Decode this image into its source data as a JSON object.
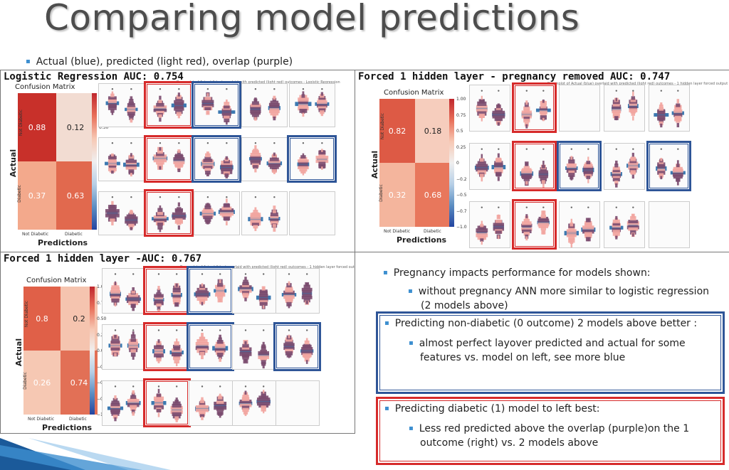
{
  "slide": {
    "title": "Comparing model predictions",
    "subtitle": "Actual (blue), predicted (light red), overlap (purple)"
  },
  "panels": [
    {
      "title": "Logistic Regression AUC: 0.754",
      "plot_header": "Boxenplot of Actual (blue) overlaid with predicted (light red) outcomes - Logistic Regression",
      "cm": {
        "title": "Confusion Matrix",
        "values": [
          "0.88",
          "0.12",
          "0.37",
          "0.63"
        ],
        "row_labels": [
          "Not Diabetic",
          "Diabetic"
        ],
        "col_labels": [
          "Not Diabetic",
          "Diabetic"
        ],
        "xlabel": "Predictions",
        "ylabel": "Actual",
        "colorbar": [
          "1.00",
          "0.75",
          "0.50",
          "0.25",
          "0.00",
          "−0.25",
          "−0.50",
          "−0.75",
          "−1.00"
        ],
        "colors": [
          "#c8302a",
          "#f2dcd2",
          "#f3a98c",
          "#e1694e"
        ]
      }
    },
    {
      "title": "Forced 1 hidden layer - pregnancy removed AUC: 0.747",
      "plot_header": "Boxenplot of Actual (blue) overlaid with predicted (light red) outcomes - 1 hidden layer forced output",
      "cm": {
        "title": "Confusion Matrix",
        "values": [
          "0.82",
          "0.18",
          "0.32",
          "0.68"
        ],
        "row_labels": [
          "Not Diabetic",
          "Diabetic"
        ],
        "col_labels": [
          "Not Diabetic",
          "Diabetic"
        ],
        "xlabel": "Predictions",
        "ylabel": "Actual",
        "colorbar": [
          "1.00",
          "0.75",
          "0.5",
          "0.25",
          "0",
          "−0.2",
          "−0.5",
          "−0.7",
          "−1.0"
        ],
        "colors": [
          "#dd5a45",
          "#f6cdbd",
          "#f4b59d",
          "#e8775c"
        ]
      }
    },
    {
      "title": "Forced 1 hidden layer -AUC: 0.767",
      "plot_header": "Boxenplot of Actual (blue) overlaid with predicted (light red) outcomes - 1 hidden layer forced output",
      "cm": {
        "title": "Confusion Matrix",
        "values": [
          "0.8",
          "0.2",
          "0.26",
          "0.74"
        ],
        "row_labels": [
          "Not Diabetic",
          "Diabetic"
        ],
        "col_labels": [
          "Not Diabetic",
          "Diabetic"
        ],
        "xlabel": "Predictions",
        "ylabel": "Actual",
        "colorbar": [
          "1.00",
          "0.75",
          "0.50",
          "0.25",
          "0.00",
          "−0.25",
          "−0.50",
          "−0.75",
          "−1.00"
        ],
        "colors": [
          "#e06048",
          "#f5c4af",
          "#f6c8b3",
          "#e27056"
        ]
      }
    }
  ],
  "notes": {
    "n1": "Pregnancy impacts performance for models shown:",
    "n1_sub": "without pregnancy ANN more similar to logistic regression (2 models above)",
    "n2": "Predicting non-diabetic (0 outcome) 2 models above better :",
    "n2_sub": "almost perfect layover predicted and actual for some features vs. model on left, see more blue",
    "n3": "Predicting diabetic (1) model to left best:",
    "n3_sub": "Less red predicted above the overlap (purple)on the 1 outcome (right) vs. 2 models above"
  },
  "colors": {
    "actual": "#3b78b0",
    "predicted": "#f2a5a0",
    "overlap": "#7a4a6e",
    "highlight_red": "#d62a2a",
    "highlight_blue": "#2e5597"
  }
}
